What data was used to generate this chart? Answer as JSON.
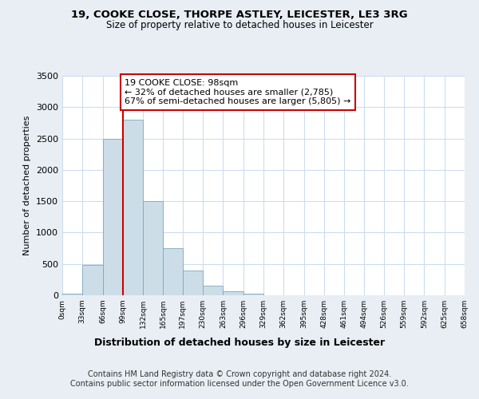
{
  "title_line1": "19, COOKE CLOSE, THORPE ASTLEY, LEICESTER, LE3 3RG",
  "title_line2": "Size of property relative to detached houses in Leicester",
  "xlabel": "Distribution of detached houses by size in Leicester",
  "ylabel": "Number of detached properties",
  "bar_edges": [
    0,
    33,
    66,
    99,
    132,
    165,
    197,
    230,
    263,
    296,
    329,
    362,
    395,
    428,
    461,
    494,
    526,
    559,
    592,
    625,
    658
  ],
  "bar_heights": [
    30,
    480,
    2500,
    2800,
    1500,
    750,
    400,
    150,
    60,
    20,
    5,
    2,
    0,
    0,
    0,
    0,
    0,
    0,
    0,
    0
  ],
  "bar_color": "#ccdde8",
  "bar_edgecolor": "#7aaabb",
  "property_line_x": 99,
  "property_line_color": "#cc0000",
  "annotation_text_line1": "19 COOKE CLOSE: 98sqm",
  "annotation_text_line2": "← 32% of detached houses are smaller (2,785)",
  "annotation_text_line3": "67% of semi-detached houses are larger (5,805) →",
  "annotation_box_color": "#ffffff",
  "annotation_box_edgecolor": "#cc0000",
  "ylim": [
    0,
    3500
  ],
  "xlim": [
    0,
    658
  ],
  "yticks": [
    0,
    500,
    1000,
    1500,
    2000,
    2500,
    3000,
    3500
  ],
  "tick_labels": [
    "0sqm",
    "33sqm",
    "66sqm",
    "99sqm",
    "132sqm",
    "165sqm",
    "197sqm",
    "230sqm",
    "263sqm",
    "296sqm",
    "329sqm",
    "362sqm",
    "395sqm",
    "428sqm",
    "461sqm",
    "494sqm",
    "526sqm",
    "559sqm",
    "592sqm",
    "625sqm",
    "658sqm"
  ],
  "tick_positions": [
    0,
    33,
    66,
    99,
    132,
    165,
    197,
    230,
    263,
    296,
    329,
    362,
    395,
    428,
    461,
    494,
    526,
    559,
    592,
    625,
    658
  ],
  "footer_line1": "Contains HM Land Registry data © Crown copyright and database right 2024.",
  "footer_line2": "Contains public sector information licensed under the Open Government Licence v3.0.",
  "background_color": "#e8eef4",
  "plot_bg_color": "#ffffff",
  "grid_color": "#ccddee",
  "title_fontsize": 9.5,
  "subtitle_fontsize": 8.5,
  "footer_fontsize": 7,
  "xlabel_fontsize": 9,
  "ylabel_fontsize": 8,
  "tick_fontsize": 6.5,
  "ytick_fontsize": 8,
  "annotation_fontsize": 8
}
